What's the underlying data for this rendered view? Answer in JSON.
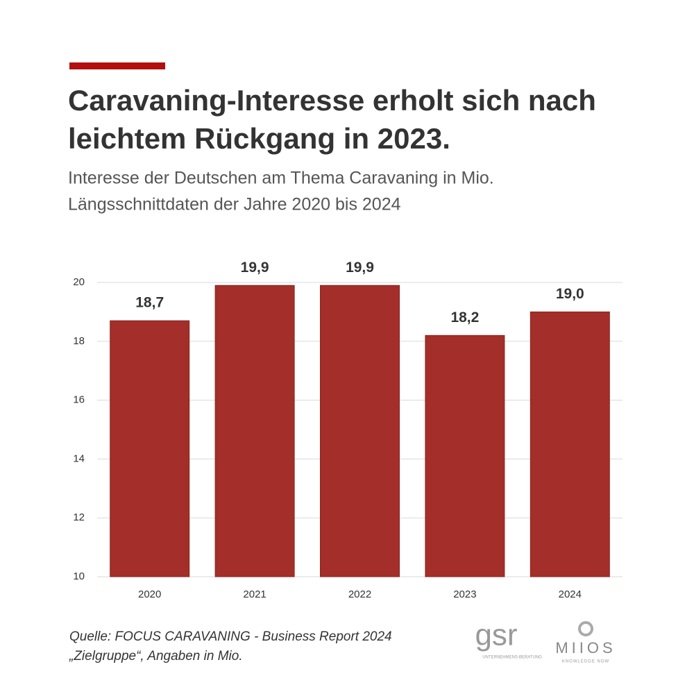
{
  "chart_data": {
    "type": "bar",
    "title": [
      "Caravaning-Interesse erholt sich nach",
      "leichtem Rückgang in 2023."
    ],
    "subtitle": [
      "Interesse der Deutschen am Thema Caravaning in Mio.",
      "Längsschnittdaten der Jahre 2020 bis 2024"
    ],
    "categories": [
      "2020",
      "2021",
      "2022",
      "2023",
      "2024"
    ],
    "values": [
      18.7,
      19.9,
      19.9,
      18.2,
      19.0
    ],
    "value_labels": [
      "18,7",
      "19,9",
      "19,9",
      "18,2",
      "19,0"
    ],
    "color": "#a32e2a",
    "ylim": [
      10,
      20
    ],
    "yticks": [
      10,
      12,
      14,
      16,
      18,
      20
    ],
    "grid": true,
    "source": [
      "Quelle: FOCUS CARAVANING - Business Report 2024",
      "„Zielgruppe“, Angaben in Mio."
    ]
  },
  "logos": {
    "gsr": "gsr",
    "gsr_tagline": "UNTERNEHMENS-BERATUNG",
    "miios": "MIIOS",
    "miios_tagline": "KNOWLEDGE NOW"
  }
}
